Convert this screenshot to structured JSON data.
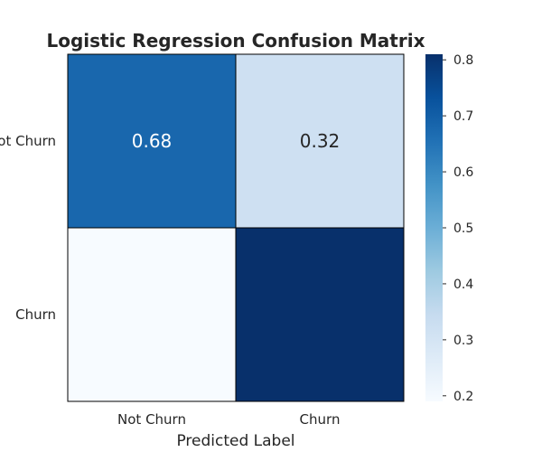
{
  "chart_data": {
    "type": "heatmap",
    "title": "Logistic Regression Confusion Matrix",
    "xlabel": "Predicted Label",
    "ylabel": "",
    "x_categories": [
      "Not Churn",
      "Churn"
    ],
    "y_categories": [
      "Not Churn",
      "Churn"
    ],
    "values": [
      [
        0.68,
        0.32
      ],
      [
        0.19,
        0.81
      ]
    ],
    "cell_labels": [
      [
        "0.68",
        "0.32"
      ],
      [
        "",
        ""
      ]
    ],
    "colormap": "Blues",
    "colorbar": {
      "range": [
        0.19,
        0.81
      ],
      "ticks": [
        0.2,
        0.3,
        0.4,
        0.5,
        0.6,
        0.7,
        0.8
      ],
      "tick_labels": [
        "0.2",
        "0.3",
        "0.4",
        "0.5",
        "0.6",
        "0.7",
        "0.8"
      ]
    },
    "grid": false,
    "legend": "colorbar-right"
  }
}
